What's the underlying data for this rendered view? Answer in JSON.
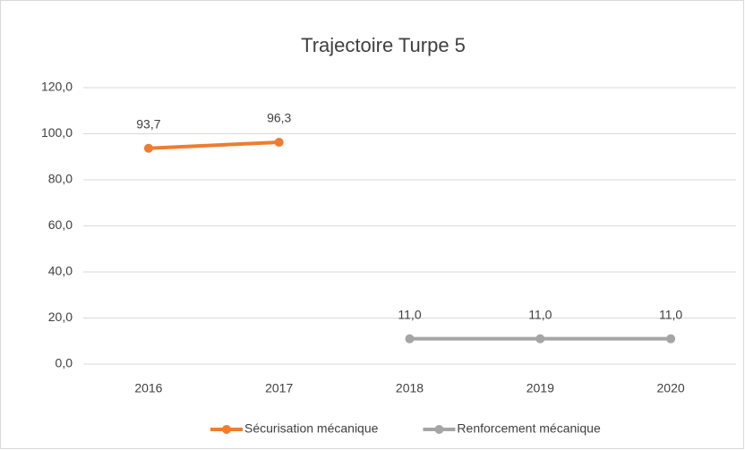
{
  "chart_data": {
    "type": "line",
    "title": "Trajectoire Turpe 5",
    "categories": [
      "2016",
      "2017",
      "2018",
      "2019",
      "2020"
    ],
    "series": [
      {
        "name": "Sécurisation mécanique",
        "color": "#ED7D31",
        "values": [
          93.7,
          96.3,
          null,
          null,
          null
        ],
        "value_labels": [
          "93,7",
          "96,3",
          null,
          null,
          null
        ]
      },
      {
        "name": "Renforcement mécanique",
        "color": "#A5A5A5",
        "values": [
          null,
          null,
          11.0,
          11.0,
          11.0
        ],
        "value_labels": [
          null,
          null,
          "11,0",
          "11,0",
          "11,0"
        ]
      }
    ],
    "ylim": [
      0,
      120
    ],
    "yticks": [
      {
        "value": 0,
        "label": "0,0"
      },
      {
        "value": 20,
        "label": "20,0"
      },
      {
        "value": 40,
        "label": "40,0"
      },
      {
        "value": 60,
        "label": "60,0"
      },
      {
        "value": 80,
        "label": "80,0"
      },
      {
        "value": 100,
        "label": "100,0"
      },
      {
        "value": 120,
        "label": "120,0"
      }
    ],
    "grid": true,
    "legend": "bottom"
  }
}
